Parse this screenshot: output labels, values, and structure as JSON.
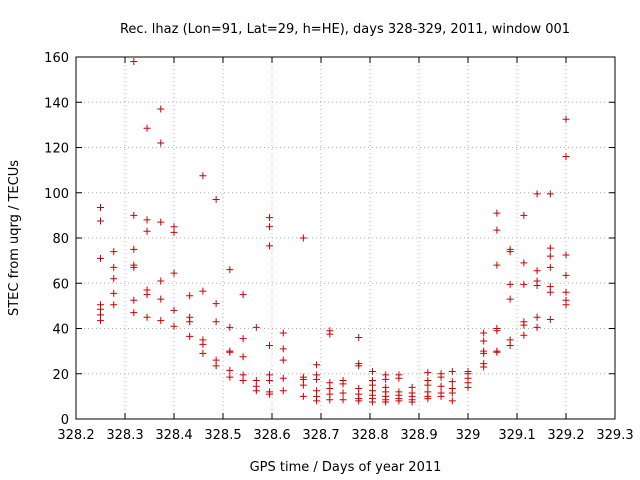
{
  "chart_data": {
    "type": "scatter",
    "title": "Rec. lhaz (Lon=91, Lat=29, h=HE), days 328-329, 2011, window 001",
    "xlabel": "GPS time / Days of year 2011",
    "ylabel": "STEC from uqrg / TECUs",
    "xlim": [
      328.2,
      329.3
    ],
    "ylim": [
      0,
      160
    ],
    "xticks": [
      "328.2",
      "328.3",
      "328.4",
      "328.5",
      "328.6",
      "328.7",
      "328.8",
      "328.9",
      "329",
      "329.1",
      "329.2",
      "329.3"
    ],
    "yticks": [
      "0",
      "20",
      "40",
      "60",
      "80",
      "100",
      "120",
      "140",
      "160"
    ],
    "grid": true,
    "marker": "+",
    "color": "#cc0000",
    "points": [
      [
        328.25,
        93.5
      ],
      [
        328.25,
        87.5
      ],
      [
        328.25,
        71
      ],
      [
        328.25,
        50.5
      ],
      [
        328.25,
        48.5
      ],
      [
        328.25,
        46
      ],
      [
        328.25,
        43.5
      ],
      [
        328.277,
        74
      ],
      [
        328.277,
        67
      ],
      [
        328.277,
        62
      ],
      [
        328.277,
        55.5
      ],
      [
        328.277,
        50.5
      ],
      [
        328.318,
        158
      ],
      [
        328.318,
        90
      ],
      [
        328.318,
        75
      ],
      [
        328.318,
        68
      ],
      [
        328.318,
        67
      ],
      [
        328.318,
        52.5
      ],
      [
        328.318,
        47
      ],
      [
        328.345,
        128.5
      ],
      [
        328.345,
        88
      ],
      [
        328.345,
        83
      ],
      [
        328.345,
        57
      ],
      [
        328.345,
        55
      ],
      [
        328.345,
        45
      ],
      [
        328.373,
        137
      ],
      [
        328.373,
        122
      ],
      [
        328.373,
        87
      ],
      [
        328.373,
        61
      ],
      [
        328.373,
        53
      ],
      [
        328.373,
        43.5
      ],
      [
        328.4,
        85
      ],
      [
        328.4,
        82.5
      ],
      [
        328.4,
        64.5
      ],
      [
        328.4,
        48
      ],
      [
        328.4,
        41
      ],
      [
        328.432,
        54.5
      ],
      [
        328.432,
        45
      ],
      [
        328.432,
        43
      ],
      [
        328.432,
        36.5
      ],
      [
        328.459,
        107.5
      ],
      [
        328.459,
        56.5
      ],
      [
        328.459,
        35
      ],
      [
        328.459,
        33
      ],
      [
        328.459,
        29
      ],
      [
        328.486,
        97
      ],
      [
        328.486,
        51
      ],
      [
        328.486,
        43
      ],
      [
        328.486,
        26
      ],
      [
        328.486,
        23.5
      ],
      [
        328.514,
        66
      ],
      [
        328.514,
        40.5
      ],
      [
        328.514,
        30
      ],
      [
        328.514,
        29.5
      ],
      [
        328.514,
        21.5
      ],
      [
        328.514,
        18.5
      ],
      [
        328.541,
        55
      ],
      [
        328.541,
        35.5
      ],
      [
        328.541,
        27.5
      ],
      [
        328.541,
        19.5
      ],
      [
        328.541,
        17
      ],
      [
        328.568,
        40.5
      ],
      [
        328.568,
        17
      ],
      [
        328.568,
        14.5
      ],
      [
        328.568,
        12.5
      ],
      [
        328.595,
        89
      ],
      [
        328.595,
        85
      ],
      [
        328.595,
        76.5
      ],
      [
        328.595,
        32.5
      ],
      [
        328.595,
        19.5
      ],
      [
        328.595,
        17
      ],
      [
        328.595,
        12
      ],
      [
        328.595,
        11
      ],
      [
        328.623,
        38
      ],
      [
        328.623,
        31
      ],
      [
        328.623,
        26
      ],
      [
        328.623,
        18
      ],
      [
        328.623,
        12.5
      ],
      [
        328.664,
        80
      ],
      [
        328.664,
        18.5
      ],
      [
        328.664,
        17.5
      ],
      [
        328.664,
        15
      ],
      [
        328.664,
        10
      ],
      [
        328.691,
        24
      ],
      [
        328.691,
        19.5
      ],
      [
        328.691,
        17.5
      ],
      [
        328.691,
        12.5
      ],
      [
        328.691,
        10
      ],
      [
        328.691,
        8
      ],
      [
        328.718,
        39
      ],
      [
        328.718,
        37.5
      ],
      [
        328.718,
        16
      ],
      [
        328.718,
        13.5
      ],
      [
        328.718,
        11
      ],
      [
        328.718,
        8.5
      ],
      [
        328.745,
        17
      ],
      [
        328.745,
        15.5
      ],
      [
        328.745,
        11.5
      ],
      [
        328.745,
        8.5
      ],
      [
        328.777,
        36
      ],
      [
        328.777,
        24.5
      ],
      [
        328.777,
        23.5
      ],
      [
        328.777,
        13.5
      ],
      [
        328.777,
        11
      ],
      [
        328.777,
        9
      ],
      [
        328.777,
        8
      ],
      [
        328.805,
        21
      ],
      [
        328.805,
        17
      ],
      [
        328.805,
        15
      ],
      [
        328.805,
        12.5
      ],
      [
        328.805,
        10.5
      ],
      [
        328.805,
        9
      ],
      [
        328.805,
        7.5
      ],
      [
        328.832,
        19.5
      ],
      [
        328.832,
        17.5
      ],
      [
        328.832,
        14
      ],
      [
        328.832,
        12
      ],
      [
        328.832,
        10
      ],
      [
        328.832,
        8.5
      ],
      [
        328.832,
        7.5
      ],
      [
        328.859,
        19.5
      ],
      [
        328.859,
        18
      ],
      [
        328.859,
        12
      ],
      [
        328.859,
        10.5
      ],
      [
        328.859,
        9
      ],
      [
        328.859,
        8
      ],
      [
        328.886,
        14
      ],
      [
        328.886,
        11.5
      ],
      [
        328.886,
        10
      ],
      [
        328.886,
        8.5
      ],
      [
        328.886,
        7.5
      ],
      [
        328.918,
        20.5
      ],
      [
        328.918,
        17
      ],
      [
        328.918,
        15
      ],
      [
        328.918,
        12
      ],
      [
        328.918,
        10
      ],
      [
        328.918,
        9
      ],
      [
        328.945,
        20
      ],
      [
        328.945,
        18.5
      ],
      [
        328.945,
        14.5
      ],
      [
        328.945,
        11.5
      ],
      [
        328.945,
        10
      ],
      [
        328.968,
        21
      ],
      [
        328.968,
        16.5
      ],
      [
        328.968,
        13.5
      ],
      [
        328.968,
        11.5
      ],
      [
        328.968,
        8
      ],
      [
        329.0,
        21
      ],
      [
        329.0,
        20
      ],
      [
        329.0,
        18
      ],
      [
        329.0,
        16
      ],
      [
        329.0,
        14
      ],
      [
        329.032,
        38
      ],
      [
        329.032,
        34.5
      ],
      [
        329.032,
        30
      ],
      [
        329.032,
        29
      ],
      [
        329.032,
        24.5
      ],
      [
        329.032,
        23
      ],
      [
        329.059,
        91
      ],
      [
        329.059,
        83.5
      ],
      [
        329.059,
        68
      ],
      [
        329.059,
        40
      ],
      [
        329.059,
        39
      ],
      [
        329.059,
        30
      ],
      [
        329.059,
        29.5
      ],
      [
        329.086,
        75
      ],
      [
        329.086,
        74
      ],
      [
        329.086,
        59.5
      ],
      [
        329.086,
        53
      ],
      [
        329.086,
        35
      ],
      [
        329.086,
        32.5
      ],
      [
        329.114,
        90
      ],
      [
        329.114,
        69
      ],
      [
        329.114,
        59.5
      ],
      [
        329.114,
        43
      ],
      [
        329.114,
        41.5
      ],
      [
        329.114,
        37
      ],
      [
        329.141,
        99.5
      ],
      [
        329.141,
        65.5
      ],
      [
        329.141,
        61
      ],
      [
        329.141,
        59
      ],
      [
        329.141,
        45
      ],
      [
        329.141,
        40.5
      ],
      [
        329.168,
        99.5
      ],
      [
        329.168,
        75.5
      ],
      [
        329.168,
        72
      ],
      [
        329.168,
        67
      ],
      [
        329.168,
        58.5
      ],
      [
        329.168,
        56
      ],
      [
        329.168,
        44
      ],
      [
        329.2,
        132.5
      ],
      [
        329.2,
        116
      ],
      [
        329.2,
        72.5
      ],
      [
        329.2,
        63.5
      ],
      [
        329.2,
        56
      ],
      [
        329.2,
        52.5
      ],
      [
        329.2,
        50.5
      ]
    ]
  }
}
